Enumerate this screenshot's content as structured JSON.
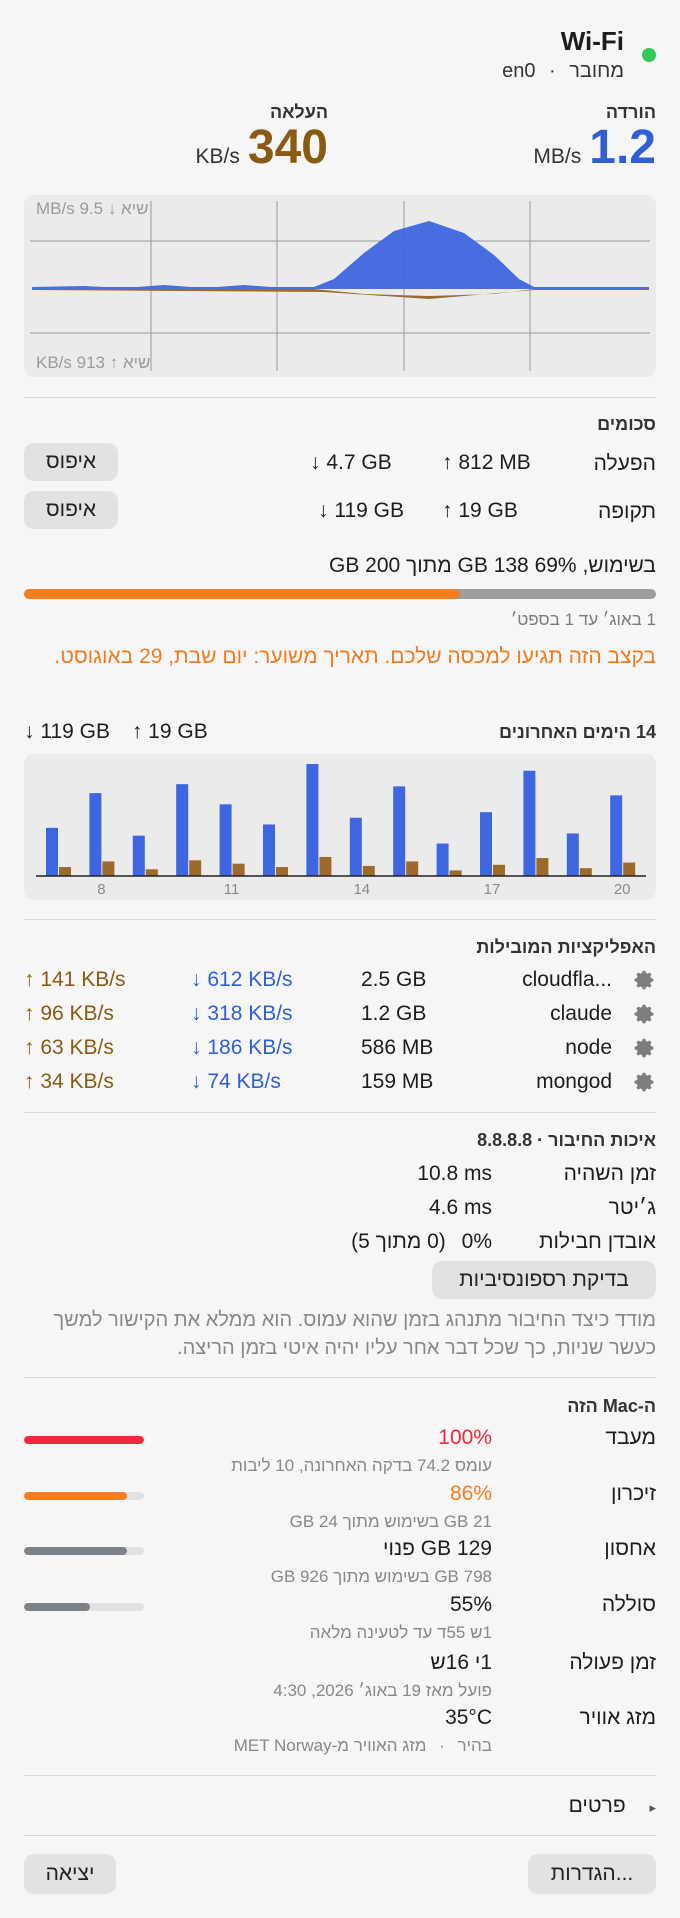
{
  "header": {
    "title": "Wi-Fi",
    "status": "מחובר",
    "dot": "·",
    "interface": "en0",
    "status_color": "#34c759"
  },
  "throughput": {
    "download_label": "הורדה",
    "download_value": "1.2",
    "download_unit": "MB/s",
    "upload_label": "העלאה",
    "upload_value": "340",
    "upload_unit": "KB/s",
    "download_color": "#2f5fd6",
    "upload_color": "#8a5a12"
  },
  "graph": {
    "peak_down_label": "שיא ↓ 9.5 MB/s",
    "peak_up_label": "שיא ↑ 913 KB/s"
  },
  "totals": {
    "title": "סכומים",
    "rows": [
      {
        "label": "הפעלה",
        "up": "↑ 812 MB",
        "down": "↓ 4.7 GB",
        "reset": "איפוס"
      },
      {
        "label": "תקופה",
        "up": "↑ 19 GB",
        "down": "↓ 119 GB",
        "reset": "איפוס"
      }
    ]
  },
  "usage": {
    "summary": "בשימוש, 69% 138 GB מתוך 200 GB",
    "fraction": 0.69,
    "fill_color": "#f47e20",
    "period": "1 באוג׳ עד 1 בספט׳",
    "warning": "בקצב הזה תגיעו למכסה שלכם. תאריך משוער: יום שבת, 29 באוגוסט.",
    "warning_color": "#f07a1e"
  },
  "days": {
    "title": "14 הימים האחרונים",
    "up_total": "↑ 19 GB",
    "down_total": "↓ 119 GB",
    "x_labels": [
      "8",
      "11",
      "14",
      "17",
      "20"
    ]
  },
  "chart_data": {
    "type": "bar",
    "categories": [
      "7",
      "8",
      "9",
      "10",
      "11",
      "12",
      "13",
      "14",
      "15",
      "16",
      "17",
      "18",
      "19",
      "20"
    ],
    "series": [
      {
        "values": [
          0.43,
          0.74,
          0.36,
          0.82,
          0.64,
          0.46,
          1.0,
          0.52,
          0.8,
          0.29,
          0.57,
          0.94,
          0.38,
          0.72
        ]
      },
      {
        "values": [
          0.08,
          0.13,
          0.06,
          0.14,
          0.11,
          0.08,
          0.17,
          0.09,
          0.13,
          0.05,
          0.1,
          0.16,
          0.07,
          0.12
        ]
      }
    ],
    "colors": [
      "#3e66e0",
      "#9b6a2c"
    ]
  },
  "apps": {
    "title": "האפליקציות המובילות",
    "rows": [
      {
        "name": "cloudfla...",
        "total": "2.5 GB",
        "down": "↓ 612 KB/s",
        "up": "↑ 141 KB/s"
      },
      {
        "name": "claude",
        "total": "1.2 GB",
        "down": "↓ 318 KB/s",
        "up": "↑ 96 KB/s"
      },
      {
        "name": "node",
        "total": "586 MB",
        "down": "↓ 186 KB/s",
        "up": "↑ 63 KB/s"
      },
      {
        "name": "mongod",
        "total": "159 MB",
        "down": "↓ 74 KB/s",
        "up": "↑ 34 KB/s"
      }
    ]
  },
  "quality": {
    "title": "איכות החיבור · 8.8.8.8",
    "rows": [
      {
        "label": "זמן השהיה",
        "value": "10.8 ms"
      },
      {
        "label": "ג׳יטר",
        "value": "4.6 ms"
      },
      {
        "label": "אובדן חבילות",
        "value": "0%",
        "extra": "(0 מתוך 5)"
      }
    ],
    "test_button": "בדיקת רספונסיביות",
    "description": "מודד כיצד החיבור מתנהג בזמן שהוא עמוס. הוא ממלא את הקישור למשך כעשר שניות, כך שכל דבר אחר עליו יהיה איטי בזמן הריצה."
  },
  "mac": {
    "title": "ה-Mac הזה",
    "cpu": {
      "label": "מעבד",
      "value": "100%",
      "sub": "עומס 74.2 בדקה האחרונה, 10 ליבות",
      "fraction": 1.0,
      "color": "#f0283c"
    },
    "memory": {
      "label": "זיכרון",
      "value": "86%",
      "sub": "21 GB בשימוש מתוך 24 GB",
      "fraction": 0.86,
      "color": "#f47e20"
    },
    "storage": {
      "label": "אחסון",
      "value": "129 GB פנוי",
      "sub": "798 GB בשימוש מתוך 926 GB",
      "fraction": 0.86,
      "color": "#7d8288"
    },
    "battery": {
      "label": "סוללה",
      "value": "55%",
      "sub": "1ש 55ד עד לטעינה מלאה",
      "fraction": 0.55,
      "color": "#7d8288"
    },
    "uptime": {
      "label": "זמן פעולה",
      "value": "1י 16ש",
      "sub": "פועל מאז 19 באוג׳ 2026, 4:30"
    },
    "weather": {
      "label": "מזג אוויר",
      "value": "35°C",
      "sub_left": "בהיר",
      "sub_dot": "·",
      "sub_right": "מזג האוויר מ-MET Norway"
    }
  },
  "details": {
    "label": "פרטים",
    "arrow": "▸"
  },
  "footer": {
    "settings": "הגדרות...",
    "quit": "יציאה"
  }
}
